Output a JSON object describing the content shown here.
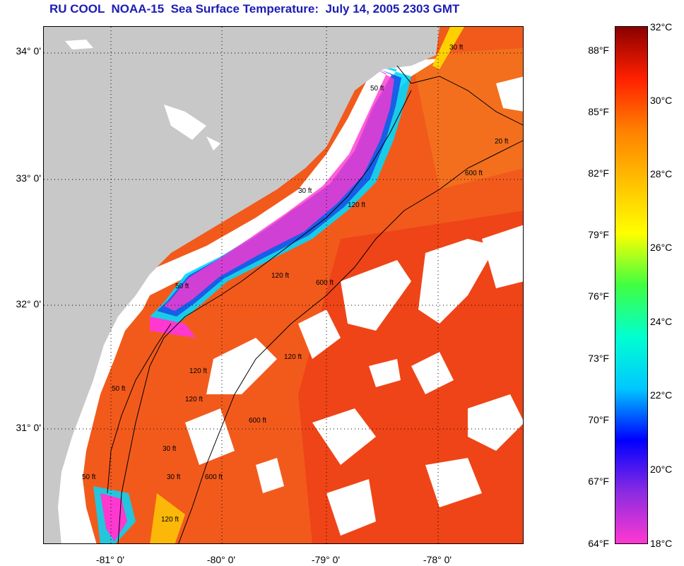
{
  "title": "RU COOL  NOAA-15  Sea Surface Temperature:  July 14, 2005 2303 GMT",
  "map": {
    "lat_labels": [
      "34° 0'",
      "33° 0'",
      "32° 0'",
      "31° 0'"
    ],
    "lon_labels": [
      "-81° 0'",
      "-80° 0'",
      "-79° 0'",
      "-78° 0'"
    ],
    "contour_labels": [
      "30 ft",
      "50 ft",
      "120 ft",
      "600 ft",
      "30 ft",
      "50 ft",
      "120 ft",
      "600 ft",
      "120 ft",
      "600 ft",
      "50 ft",
      "120 ft",
      "600 ft",
      "30 ft",
      "120 ft",
      "50 ft",
      "20 ft",
      "30 ft",
      "120 ft"
    ],
    "colors": {
      "land": "#c8c8c8",
      "cloud_and_shelf": "#ffffff",
      "warm_sea": "#f25a1c",
      "cool_upwelling": "#1a4ae6",
      "coldest": "#ff38d0",
      "contour": "#000000"
    }
  },
  "colorbar": {
    "fahrenheit_labels": [
      "88°F",
      "85°F",
      "82°F",
      "79°F",
      "76°F",
      "73°F",
      "70°F",
      "67°F",
      "64°F"
    ],
    "celsius_labels": [
      "32°C",
      "30°C",
      "28°C",
      "26°C",
      "24°C",
      "22°C",
      "20°C",
      "18°C"
    ],
    "range_celsius": [
      18,
      32
    ],
    "stops": [
      "#ff38d0",
      "#8a2be2",
      "#0000ff",
      "#00c8ff",
      "#00ffd0",
      "#40ff40",
      "#ffff00",
      "#ffc000",
      "#ff8000",
      "#ff2000",
      "#8b0000"
    ]
  }
}
